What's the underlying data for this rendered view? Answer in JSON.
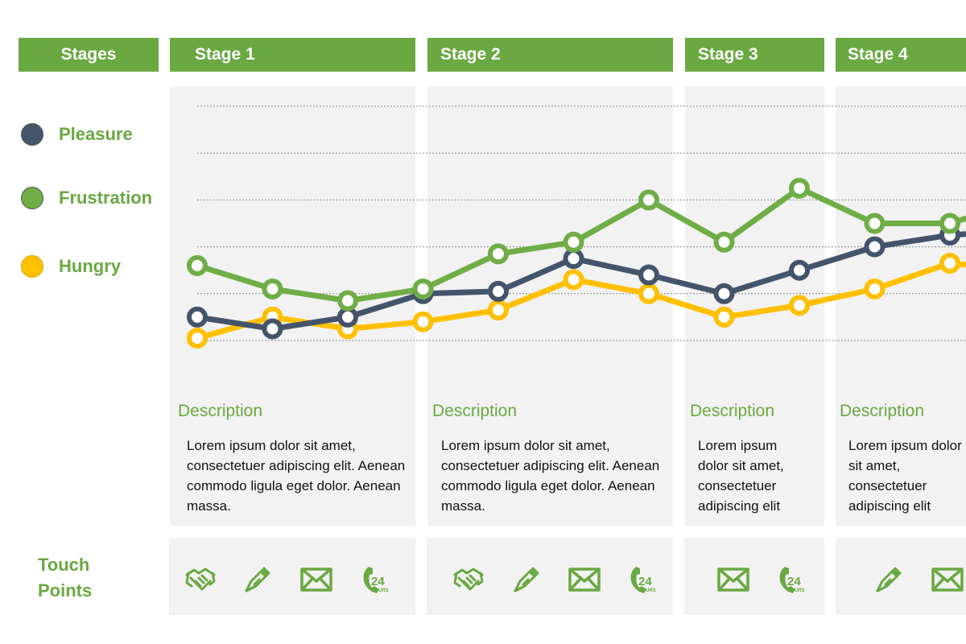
{
  "header": {
    "stages_label": "Stages",
    "stages": [
      {
        "label": "Stage 1"
      },
      {
        "label": "Stage 2"
      },
      {
        "label": "Stage 3"
      },
      {
        "label": "Stage 4"
      }
    ]
  },
  "legend": [
    {
      "label": "Pleasure",
      "color": "#44546a"
    },
    {
      "label": "Frustration",
      "color": "#70ad47"
    },
    {
      "label": "Hungry",
      "color": "#ffc000"
    }
  ],
  "descriptions": [
    {
      "title": "Description",
      "text": "Lorem ipsum dolor sit amet, consectetuer adipiscing elit. Aenean commodo ligula eget dolor. Aenean massa."
    },
    {
      "title": "Description",
      "text": "Lorem ipsum dolor sit amet, consectetuer adipiscing elit. Aenean commodo ligula eget dolor. Aenean massa."
    },
    {
      "title": "Description",
      "text": "Lorem ipsum dolor sit amet, consectetuer adipiscing elit"
    },
    {
      "title": "Description",
      "text": "Lorem ipsum dolor sit amet, consectetuer adipiscing elit"
    }
  ],
  "touch_points": {
    "label_line1": "Touch",
    "label_line2": "Points",
    "stages": [
      [
        "handshake-icon",
        "pen-icon",
        "envelope-icon",
        "phone-24-hours-icon"
      ],
      [
        "handshake-icon",
        "pen-icon",
        "envelope-icon",
        "phone-24-hours-icon"
      ],
      [
        "envelope-icon",
        "phone-24-hours-icon"
      ],
      [
        "pen-icon",
        "envelope-icon"
      ]
    ],
    "icon_text_24": "24",
    "icon_text_hours": "HOURS"
  },
  "colors": {
    "accent": "#6aa842",
    "panel": "#f2f2f2"
  },
  "chart_data": {
    "type": "line",
    "x": [
      1,
      2,
      3,
      4,
      5,
      6,
      7,
      8,
      9,
      10,
      11,
      12
    ],
    "ylim": [
      0,
      5
    ],
    "grid": "horizontal-dotted",
    "legend_position": "left",
    "series": [
      {
        "name": "Pleasure",
        "color": "#44546a",
        "values": [
          0.5,
          0.25,
          0.5,
          1.0,
          1.05,
          1.75,
          1.4,
          1.0,
          1.5,
          2.0,
          2.25,
          2.35
        ]
      },
      {
        "name": "Frustration",
        "color": "#70ad47",
        "values": [
          1.6,
          1.1,
          0.85,
          1.1,
          1.85,
          2.1,
          3.0,
          2.1,
          3.25,
          2.5,
          2.5,
          3.0
        ]
      },
      {
        "name": "Hungry",
        "color": "#ffc000",
        "values": [
          0.05,
          0.5,
          0.25,
          0.4,
          0.65,
          1.3,
          1.0,
          0.5,
          0.75,
          1.1,
          1.65,
          1.5
        ]
      }
    ]
  }
}
